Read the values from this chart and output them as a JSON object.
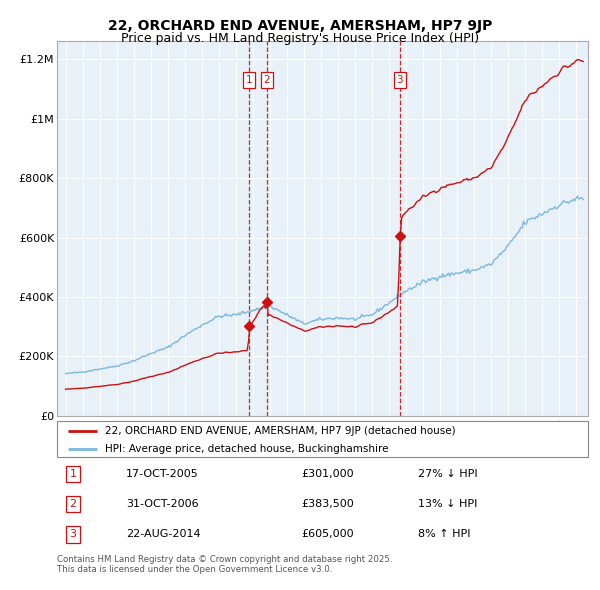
{
  "title": "22, ORCHARD END AVENUE, AMERSHAM, HP7 9JP",
  "subtitle": "Price paid vs. HM Land Registry's House Price Index (HPI)",
  "title_fontsize": 10,
  "subtitle_fontsize": 9,
  "hpi_color": "#7ab8e0",
  "sale_color": "#cc1111",
  "background_color": "#e8f0f8",
  "xlim": [
    1994.5,
    2025.7
  ],
  "ylim": [
    0,
    1260000
  ],
  "yticks": [
    0,
    200000,
    400000,
    600000,
    800000,
    1000000,
    1200000
  ],
  "ytick_labels": [
    "£0",
    "£200K",
    "£400K",
    "£600K",
    "£800K",
    "£1M",
    "£1.2M"
  ],
  "xticks": [
    1995,
    1996,
    1997,
    1998,
    1999,
    2000,
    2001,
    2002,
    2003,
    2004,
    2005,
    2006,
    2007,
    2008,
    2009,
    2010,
    2011,
    2012,
    2013,
    2014,
    2015,
    2016,
    2017,
    2018,
    2019,
    2020,
    2021,
    2022,
    2023,
    2024,
    2025
  ],
  "transactions": [
    {
      "num": 1,
      "date": "17-OCT-2005",
      "price": 301000,
      "pct": "27%",
      "dir": "↓",
      "x_year": 2005.8
    },
    {
      "num": 2,
      "date": "31-OCT-2006",
      "price": 383500,
      "pct": "13%",
      "dir": "↓",
      "x_year": 2006.83
    },
    {
      "num": 3,
      "date": "22-AUG-2014",
      "price": 605000,
      "pct": "8%",
      "dir": "↑",
      "x_year": 2014.63
    }
  ],
  "footer": "Contains HM Land Registry data © Crown copyright and database right 2025.\nThis data is licensed under the Open Government Licence v3.0.",
  "legend_sale_label": "22, ORCHARD END AVENUE, AMERSHAM, HP7 9JP (detached house)",
  "legend_hpi_label": "HPI: Average price, detached house, Buckinghamshire"
}
